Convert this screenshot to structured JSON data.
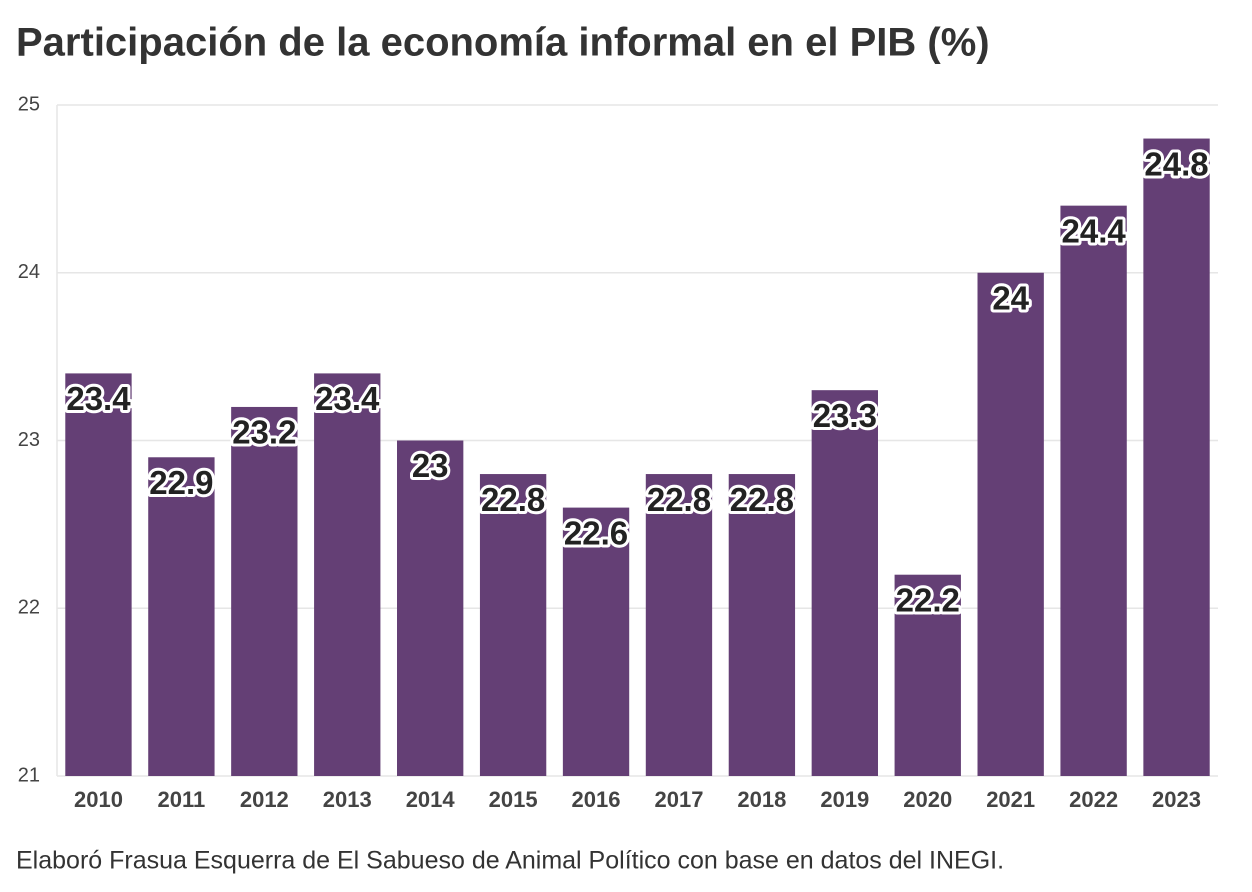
{
  "chart_data": {
    "type": "bar",
    "title": "Participación de la economía informal en el PIB (%)",
    "categories": [
      "2010",
      "2011",
      "2012",
      "2013",
      "2014",
      "2015",
      "2016",
      "2017",
      "2018",
      "2019",
      "2020",
      "2021",
      "2022",
      "2023"
    ],
    "values": [
      23.4,
      22.9,
      23.2,
      23.4,
      23,
      22.8,
      22.6,
      22.8,
      22.8,
      23.3,
      22.2,
      24,
      24.4,
      24.8
    ],
    "color": "#643f75",
    "ylim": [
      21,
      25
    ],
    "yticks": [
      21,
      22,
      23,
      24,
      25
    ],
    "grid": true,
    "caption": "Elaboró Frasua Esquerra de El Sabueso de Animal Político con base en datos del INEGI."
  }
}
